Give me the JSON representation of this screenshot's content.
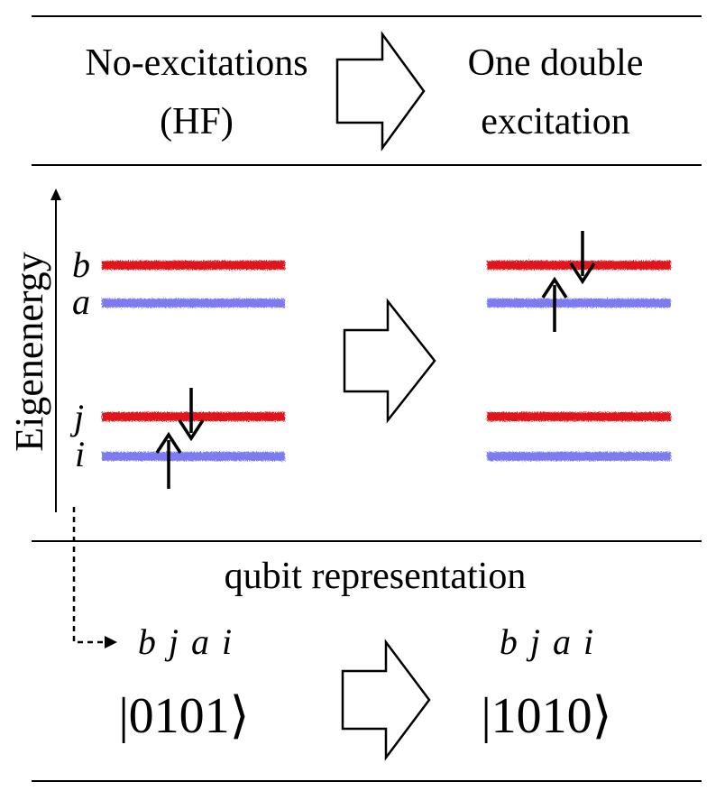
{
  "header": {
    "left_line1": "No-excitations",
    "left_line2": "(HF)",
    "right_line1": "One double",
    "right_line2": "excitation"
  },
  "diagram": {
    "axis_label": "Eigenenergy",
    "levels": {
      "b": "b",
      "a": "a",
      "j": "j",
      "i": "i"
    },
    "colors": {
      "red_level": "#e0191f",
      "blue_level": "#7b7bf0",
      "ink": "#000000"
    }
  },
  "qubit": {
    "title": "qubit representation",
    "order_left": "b j a i",
    "order_right": "b j a i",
    "state_left": "|0101⟩",
    "state_right": "|1010⟩"
  }
}
